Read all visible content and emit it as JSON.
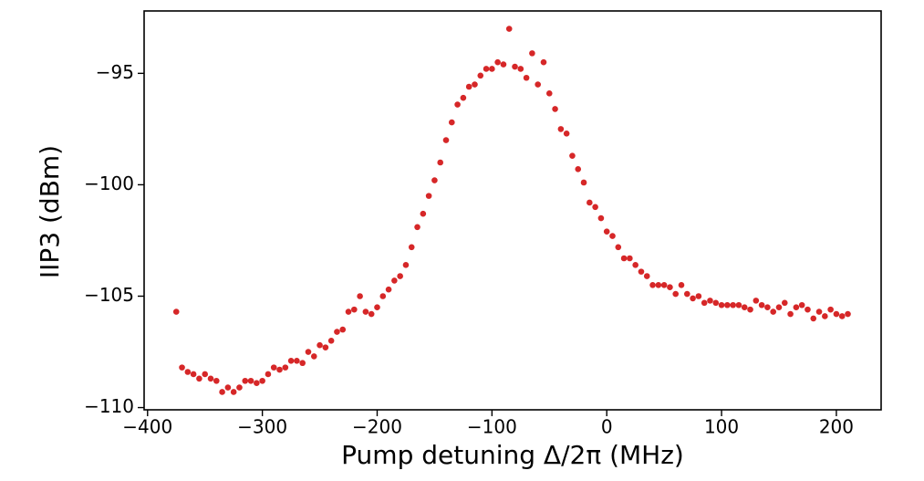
{
  "chart_data": {
    "type": "scatter",
    "xlabel": "Pump detuning Δ/2π (MHz)",
    "ylabel": "IIP3 (dBm)",
    "color": "#d62728",
    "xlim": [
      -403,
      239
    ],
    "ylim": [
      -110.1,
      -92.2
    ],
    "xticks": [
      {
        "value": -400,
        "label": "−400"
      },
      {
        "value": -300,
        "label": "−300"
      },
      {
        "value": -200,
        "label": "−200"
      },
      {
        "value": -100,
        "label": "−100"
      },
      0,
      100,
      200
    ],
    "yticks": [
      {
        "value": -110,
        "label": "−110"
      },
      {
        "value": -105,
        "label": "−105"
      },
      {
        "value": -100,
        "label": "−100"
      },
      {
        "value": -95,
        "label": "−95"
      }
    ],
    "x": [
      -375,
      -370,
      -365,
      -360,
      -355,
      -350,
      -345,
      -340,
      -335,
      -330,
      -325,
      -320,
      -315,
      -310,
      -305,
      -300,
      -295,
      -290,
      -285,
      -280,
      -275,
      -270,
      -265,
      -260,
      -255,
      -250,
      -245,
      -240,
      -235,
      -230,
      -225,
      -220,
      -215,
      -210,
      -205,
      -200,
      -195,
      -190,
      -185,
      -180,
      -175,
      -170,
      -165,
      -160,
      -155,
      -150,
      -145,
      -140,
      -135,
      -130,
      -125,
      -120,
      -115,
      -110,
      -105,
      -100,
      -95,
      -90,
      -85,
      -80,
      -75,
      -70,
      -65,
      -60,
      -55,
      -50,
      -45,
      -40,
      -35,
      -30,
      -25,
      -20,
      -15,
      -10,
      -5,
      0,
      5,
      10,
      15,
      20,
      25,
      30,
      35,
      40,
      45,
      50,
      55,
      60,
      65,
      70,
      75,
      80,
      85,
      90,
      95,
      100,
      105,
      110,
      115,
      120,
      125,
      130,
      135,
      140,
      145,
      150,
      155,
      160,
      165,
      170,
      175,
      180,
      185,
      190,
      195,
      200,
      205,
      210
    ],
    "values": [
      -105.7,
      -108.2,
      -108.4,
      -108.5,
      -108.7,
      -108.5,
      -108.7,
      -108.8,
      -109.3,
      -109.1,
      -109.3,
      -109.1,
      -108.8,
      -108.8,
      -108.9,
      -108.8,
      -108.5,
      -108.2,
      -108.3,
      -108.2,
      -107.9,
      -107.9,
      -108.0,
      -107.5,
      -107.7,
      -107.2,
      -107.3,
      -107.0,
      -106.6,
      -106.5,
      -105.7,
      -105.6,
      -105.0,
      -105.7,
      -105.8,
      -105.5,
      -105.0,
      -104.7,
      -104.3,
      -104.1,
      -103.6,
      -102.8,
      -101.9,
      -101.3,
      -100.5,
      -99.8,
      -99.0,
      -98.0,
      -97.2,
      -96.4,
      -96.1,
      -95.6,
      -95.5,
      -95.1,
      -94.8,
      -94.8,
      -94.5,
      -94.6,
      -93.0,
      -94.7,
      -94.8,
      -95.2,
      -94.1,
      -95.5,
      -94.5,
      -95.9,
      -96.6,
      -97.5,
      -97.7,
      -98.7,
      -99.3,
      -99.9,
      -100.8,
      -101.0,
      -101.5,
      -102.1,
      -102.3,
      -102.8,
      -103.3,
      -103.3,
      -103.6,
      -103.9,
      -104.1,
      -104.5,
      -104.5,
      -104.5,
      -104.6,
      -104.9,
      -104.5,
      -104.9,
      -105.1,
      -105.0,
      -105.3,
      -105.2,
      -105.3,
      -105.4,
      -105.4,
      -105.4,
      -105.4,
      -105.5,
      -105.6,
      -105.2,
      -105.4,
      -105.5,
      -105.7,
      -105.5,
      -105.3,
      -105.8,
      -105.5,
      -105.4,
      -105.6,
      -106.0,
      -105.7,
      -105.9,
      -105.6,
      -105.8,
      -105.9,
      -105.8
    ]
  }
}
